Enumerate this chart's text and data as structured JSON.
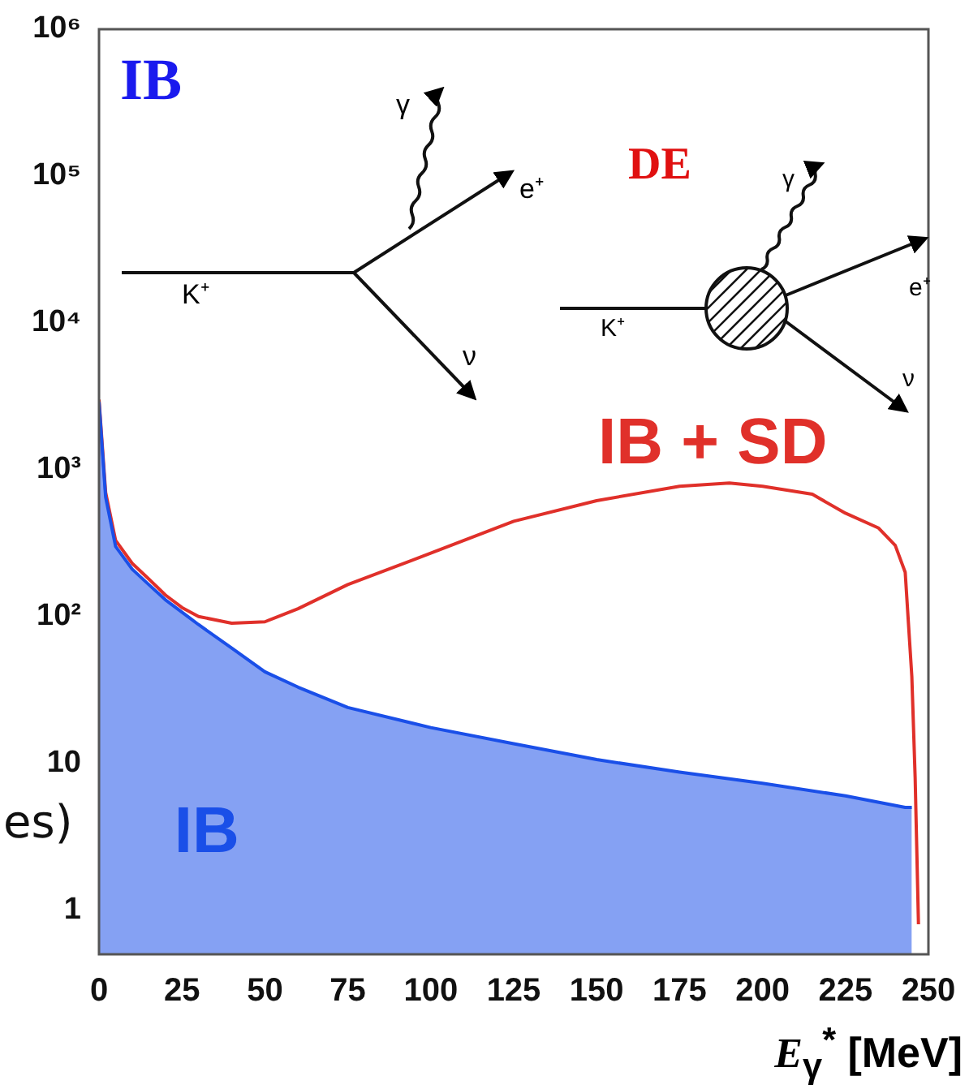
{
  "chart_data": {
    "type": "line",
    "xlabel": "E$_{γ}$$^{*}$ [MeV]",
    "xlim": [
      0,
      250
    ],
    "xticks": [
      0,
      25,
      50,
      75,
      100,
      125,
      150,
      175,
      200,
      225,
      250
    ],
    "log": "y",
    "ylim": [
      0.5,
      1000000
    ],
    "yticks": [
      {
        "value": 1,
        "label": "1"
      },
      {
        "value": 10,
        "label": "10"
      },
      {
        "value": 100,
        "label": "10²"
      },
      {
        "value": 1000,
        "label": "10³"
      },
      {
        "value": 10000,
        "label": "10⁴"
      },
      {
        "value": 100000,
        "label": "10⁵"
      },
      {
        "value": 1000000,
        "label": "10⁶"
      }
    ],
    "grid": false,
    "legend": false,
    "annotations": [
      "IB",
      "DE",
      "γ",
      "e⁺",
      "K⁺",
      "ν",
      "γ",
      "e⁺",
      "K⁺",
      "ν",
      "es)"
    ],
    "series": [
      {
        "name": "IB",
        "type": "area",
        "color": "#1a4fe8",
        "x": [
          0,
          2,
          5,
          10,
          15,
          20,
          25,
          30,
          40,
          50,
          60,
          75,
          100,
          125,
          150,
          175,
          200,
          225,
          243,
          245
        ],
        "values": [
          2900,
          650,
          300,
          210,
          165,
          130,
          107,
          88,
          61,
          42,
          33,
          24,
          17.5,
          13.6,
          10.6,
          8.7,
          7.3,
          6,
          5,
          5
        ]
      },
      {
        "name": "IB + SD",
        "color": "#e0302a",
        "x": [
          0,
          2,
          5,
          10,
          15,
          20,
          25,
          30,
          40,
          50,
          60,
          75,
          100,
          125,
          150,
          175,
          190,
          200,
          215,
          225,
          235,
          240,
          243,
          245,
          246,
          247
        ],
        "values": [
          3000,
          700,
          330,
          230,
          180,
          140,
          115,
          100,
          90,
          92,
          113,
          165,
          270,
          445,
          615,
          770,
          810,
          770,
          680,
          505,
          400,
          305,
          200,
          39,
          8,
          0.8
        ]
      }
    ]
  }
}
